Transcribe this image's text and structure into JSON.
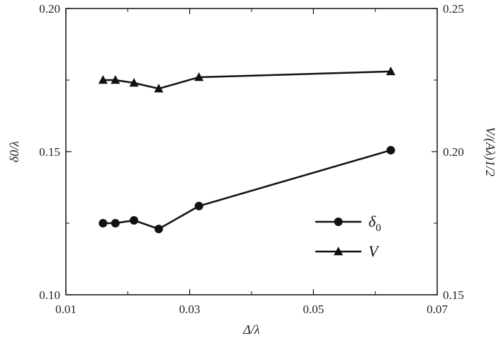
{
  "chart_data": {
    "type": "line",
    "xlabel": "Δ/λ",
    "ylabel_left": "δ0/λ",
    "ylabel_right": "V/(Aλ)1/2",
    "xlim": [
      0.01,
      0.07
    ],
    "ylim_left": [
      0.1,
      0.2
    ],
    "ylim_right": [
      0.15,
      0.25
    ],
    "x_ticks": [
      "0.01",
      "0.03",
      "0.05",
      "0.07"
    ],
    "y_left_ticks": [
      "0.10",
      "0.15",
      "0.20"
    ],
    "y_right_ticks": [
      "0.15",
      "0.20",
      "0.25"
    ],
    "legend_position": "lower-right",
    "series": [
      {
        "name": "δ0",
        "axis": "left",
        "marker": "circle",
        "x": [
          0.016,
          0.018,
          0.021,
          0.025,
          0.0315,
          0.0625
        ],
        "y": [
          0.125,
          0.125,
          0.126,
          0.123,
          0.131,
          0.1505
        ]
      },
      {
        "name": "V",
        "axis": "right",
        "marker": "triangle",
        "x": [
          0.016,
          0.018,
          0.021,
          0.025,
          0.0315,
          0.0625
        ],
        "y": [
          0.225,
          0.225,
          0.224,
          0.222,
          0.226,
          0.228
        ]
      }
    ],
    "legend": [
      {
        "label": "δ",
        "sub": "0",
        "marker": "circle"
      },
      {
        "label": "V",
        "sub": "",
        "marker": "triangle"
      }
    ]
  }
}
